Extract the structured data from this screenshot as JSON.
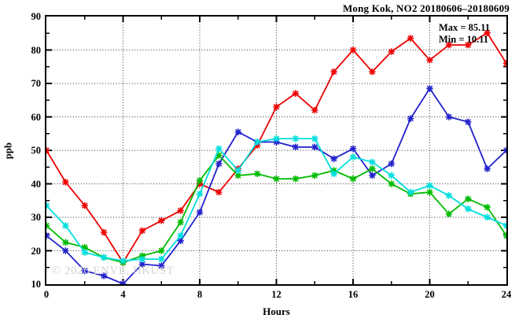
{
  "title": "Mong Kok, NO2 20180606–20180609",
  "annotation": {
    "max_label": "Max = 85.11",
    "min_label": "Min = 10.11"
  },
  "watermark": "© 2026 ENVE, HKUST",
  "chart_data": {
    "type": "line",
    "title": "Mong Kok, NO2 20180606–20180609",
    "xlabel": "Hours",
    "ylabel": "ppb",
    "xlim": [
      0,
      24
    ],
    "ylim": [
      10,
      90
    ],
    "x_major_ticks": [
      0,
      4,
      8,
      12,
      16,
      20,
      24
    ],
    "x_minor_ticks": [
      2,
      6,
      10,
      14,
      18,
      22
    ],
    "y_major_ticks": [
      10,
      20,
      30,
      40,
      50,
      60,
      70,
      80,
      90
    ],
    "y_minor_ticks": [
      15,
      25,
      35,
      45,
      55,
      65,
      75,
      85
    ],
    "x_grid_at": [
      4,
      8,
      12,
      16,
      20
    ],
    "y_grid_at": [
      20,
      30,
      40,
      50,
      60,
      70,
      80
    ],
    "grid_style": "dotted",
    "legend": "none",
    "marker": "star",
    "stat_max": 85.11,
    "stat_min": 10.11,
    "x": [
      0,
      1,
      2,
      3,
      4,
      5,
      6,
      7,
      8,
      9,
      10,
      11,
      12,
      13,
      14,
      15,
      16,
      17,
      18,
      19,
      20,
      21,
      22,
      23,
      24
    ],
    "series": [
      {
        "name": "day-1-red",
        "color": "#ee0000",
        "values": [
          50,
          40.5,
          33.5,
          25.5,
          16.5,
          26,
          29,
          32,
          40,
          37.5,
          44.5,
          51.5,
          63,
          67,
          62,
          73.5,
          80,
          73.5,
          79.5,
          83.5,
          77,
          81.5,
          81.5,
          85.11,
          76
        ]
      },
      {
        "name": "day-2-blue",
        "color": "#2222cc",
        "values": [
          24.5,
          20,
          14,
          12.5,
          10.11,
          16,
          15.5,
          23,
          31.5,
          46,
          55.5,
          52.5,
          52.5,
          51,
          51,
          47.5,
          50.5,
          42.5,
          46,
          59.5,
          68.5,
          60,
          58.5,
          44.5,
          50
        ]
      },
      {
        "name": "day-3-green",
        "color": "#00bb00",
        "values": [
          27.5,
          22.5,
          21,
          18,
          16.5,
          18.5,
          20,
          28.5,
          41,
          48.5,
          42.5,
          43,
          41.5,
          41.5,
          42.5,
          44,
          41.5,
          44.5,
          40,
          37,
          37.5,
          31,
          35.5,
          33,
          24.5
        ]
      },
      {
        "name": "day-4-cyan",
        "color": "#00dede",
        "values": [
          33.5,
          27.5,
          19.5,
          18,
          17,
          17.5,
          17.5,
          24.5,
          37,
          50.5,
          44,
          52.5,
          53.5,
          53.5,
          53.5,
          43,
          48,
          46.5,
          42.5,
          37.5,
          39.5,
          36.5,
          32.5,
          30,
          27.5
        ]
      }
    ]
  }
}
